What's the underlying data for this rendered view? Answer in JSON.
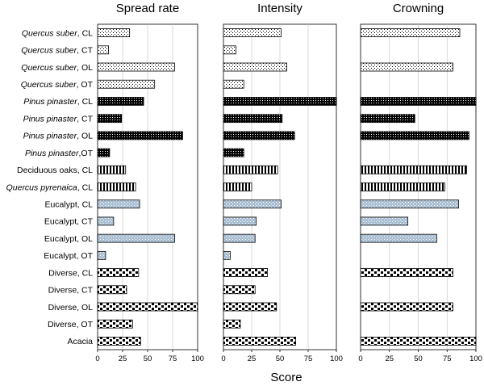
{
  "chart_data": {
    "type": "bar",
    "orientation": "horizontal",
    "xlabel": "Score",
    "xlim": [
      0,
      100
    ],
    "xticks": [
      "0",
      "25",
      "50",
      "75",
      "100"
    ],
    "categories": [
      {
        "species": "Quercus suber",
        "suffix": ", CL",
        "italic": true,
        "pattern": "dots-sparse"
      },
      {
        "species": "Quercus suber",
        "suffix": ", CT",
        "italic": true,
        "pattern": "dots-sparse"
      },
      {
        "species": "Quercus suber",
        "suffix": ", OL",
        "italic": true,
        "pattern": "dots-sparse"
      },
      {
        "species": "Quercus suber",
        "suffix": ", OT",
        "italic": true,
        "pattern": "dots-sparse"
      },
      {
        "species": "Pinus pinaster",
        "suffix": ", CL",
        "italic": true,
        "pattern": "dots-dense"
      },
      {
        "species": "Pinus pinaster",
        "suffix": ", CT",
        "italic": true,
        "pattern": "dots-dense"
      },
      {
        "species": "Pinus pinaster",
        "suffix": ", OL",
        "italic": true,
        "pattern": "dots-dense"
      },
      {
        "species": "Pinus pinaster",
        "suffix": ",OT",
        "italic": true,
        "pattern": "dots-dense"
      },
      {
        "species": "",
        "suffix": "Deciduous oaks, CL",
        "italic": false,
        "pattern": "vstripes"
      },
      {
        "species": "Quercus pyrenaica",
        "suffix": ", CL",
        "italic": true,
        "pattern": "vstripes"
      },
      {
        "species": "",
        "suffix": "Eucalypt, CL",
        "italic": false,
        "pattern": "grey-dots"
      },
      {
        "species": "",
        "suffix": "Eucalypt, CT",
        "italic": false,
        "pattern": "grey-dots"
      },
      {
        "species": "",
        "suffix": "Eucalypt, OL",
        "italic": false,
        "pattern": "grey-dots"
      },
      {
        "species": "",
        "suffix": "Eucalypt, OT",
        "italic": false,
        "pattern": "grey-dots"
      },
      {
        "species": "",
        "suffix": "Diverse, CL",
        "italic": false,
        "pattern": "checker"
      },
      {
        "species": "",
        "suffix": "Diverse, CT",
        "italic": false,
        "pattern": "checker"
      },
      {
        "species": "",
        "suffix": "Diverse, OL",
        "italic": false,
        "pattern": "checker"
      },
      {
        "species": "",
        "suffix": "Diverse, OT",
        "italic": false,
        "pattern": "checker"
      },
      {
        "species": "",
        "suffix": "Acacia",
        "italic": false,
        "pattern": "checker"
      }
    ],
    "panels": [
      {
        "title": "Spread rate",
        "values": [
          32,
          11,
          77,
          57,
          46,
          24,
          85,
          12,
          28,
          38,
          42,
          16,
          77,
          8,
          41,
          29,
          100,
          35,
          43
        ]
      },
      {
        "title": "Intensity",
        "values": [
          51,
          11,
          56,
          18,
          100,
          52,
          63,
          18,
          48,
          25,
          51,
          29,
          28,
          6,
          39,
          28,
          47,
          15,
          64
        ]
      },
      {
        "title": "Crowning",
        "values": [
          86,
          null,
          80,
          null,
          100,
          47,
          94,
          null,
          92,
          73,
          85,
          41,
          66,
          null,
          80,
          null,
          80,
          null,
          100
        ]
      }
    ]
  }
}
